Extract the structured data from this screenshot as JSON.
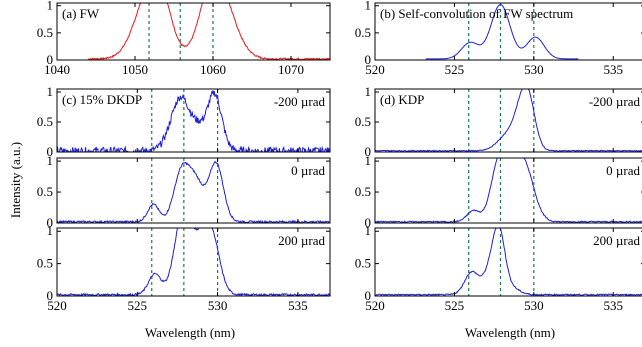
{
  "figure": {
    "ylabel_shared": "Intensity (a.u.)",
    "xlabel": "Wavelength (nm)"
  },
  "chart_data": [
    {
      "id": "a",
      "type": "line",
      "label": "(a) FW",
      "xlim": [
        1040,
        1075
      ],
      "ylim": [
        0,
        1.05
      ],
      "xticks": [
        1040,
        1050,
        1060,
        1070
      ],
      "yticks": [
        0,
        0.5,
        1
      ],
      "ytick_labels": [
        "0",
        "0.5",
        "1"
      ],
      "color": "#e8191c",
      "peaks": [
        [
          1051.5,
          0.9,
          1.8
        ],
        [
          1053.2,
          0.9,
          1.5
        ],
        [
          1059.6,
          0.9,
          1.5
        ],
        [
          1061.3,
          0.88,
          1.8
        ]
      ],
      "noise": 0.015,
      "x_range": [
        1044,
        1075
      ]
    },
    {
      "id": "b",
      "type": "line",
      "label": "(b) Self-convolution of FW spectrum",
      "xlim": [
        520,
        537
      ],
      "ylim": [
        0,
        1.05
      ],
      "xticks": [
        520,
        525,
        530,
        535
      ],
      "yticks": [
        0,
        0.5,
        1
      ],
      "ytick_labels": [
        "0",
        "0.5",
        "1"
      ],
      "color": "#1f1fd6",
      "peaks": [
        [
          526.0,
          0.3,
          0.55
        ],
        [
          527.9,
          1.0,
          0.6
        ],
        [
          530.1,
          0.4,
          0.55
        ]
      ],
      "noise": 0.0,
      "x_range": [
        523.2,
        532.8
      ]
    },
    {
      "id": "c1",
      "type": "line",
      "label": "(c) 15% DKDP",
      "annotation": "-200 µrad",
      "xlim": [
        520,
        537
      ],
      "ylim": [
        0,
        1.05
      ],
      "yticks": [
        0,
        0.5,
        1
      ],
      "ytick_labels": [
        "0",
        "0.5",
        "1"
      ],
      "color": "#1f1fd6",
      "peaks": [
        [
          527.4,
          0.45,
          0.55
        ],
        [
          527.9,
          0.55,
          0.5
        ],
        [
          529.8,
          0.95,
          0.45
        ],
        [
          528.8,
          0.3,
          0.4
        ]
      ],
      "noise": 0.06,
      "x_range": [
        520,
        537
      ]
    },
    {
      "id": "c2",
      "type": "line",
      "annotation": "0 µrad",
      "xlim": [
        520,
        537
      ],
      "ylim": [
        0,
        1.05
      ],
      "yticks": [
        0,
        0.5,
        1
      ],
      "ytick_labels": [
        "0",
        "0.5",
        "1"
      ],
      "color": "#1f1fd6",
      "peaks": [
        [
          526.0,
          0.28,
          0.35
        ],
        [
          527.8,
          0.85,
          0.5
        ],
        [
          529.9,
          0.95,
          0.45
        ],
        [
          528.7,
          0.55,
          0.45
        ]
      ],
      "noise": 0.015,
      "x_range": [
        520,
        537
      ]
    },
    {
      "id": "c3",
      "type": "line",
      "annotation": "200 µrad",
      "xlim": [
        520,
        537
      ],
      "ylim": [
        0,
        1.05
      ],
      "xticks": [
        520,
        525,
        530,
        535
      ],
      "yticks": [
        0,
        0.5,
        1
      ],
      "ytick_labels": [
        "0",
        "0.5",
        "1"
      ],
      "color": "#1f1fd6",
      "peaks": [
        [
          526.1,
          0.32,
          0.4
        ],
        [
          527.6,
          0.75,
          0.45
        ],
        [
          528.1,
          0.9,
          0.4
        ],
        [
          529.6,
          0.95,
          0.5
        ],
        [
          528.9,
          0.55,
          0.4
        ]
      ],
      "noise": 0.015,
      "x_range": [
        520,
        537
      ]
    },
    {
      "id": "d1",
      "type": "line",
      "label": "(d) KDP",
      "annotation": "-200 µrad",
      "xlim": [
        520,
        537
      ],
      "ylim": [
        0,
        1.05
      ],
      "yticks": [
        0,
        0.5,
        1
      ],
      "ytick_labels": [
        "0",
        "0.5",
        "1"
      ],
      "color": "#1f1fd6",
      "peaks": [
        [
          528.3,
          0.25,
          0.6
        ],
        [
          529.6,
          0.95,
          0.45
        ],
        [
          529.0,
          0.3,
          0.4
        ]
      ],
      "noise": 0.008,
      "x_range": [
        520,
        537
      ]
    },
    {
      "id": "d2",
      "type": "line",
      "annotation": "0 µrad",
      "xlim": [
        520,
        537
      ],
      "ylim": [
        0,
        1.05
      ],
      "yticks": [
        0,
        0.5,
        1
      ],
      "ytick_labels": [
        "0",
        "0.5",
        "1"
      ],
      "color": "#1f1fd6",
      "peaks": [
        [
          526.2,
          0.18,
          0.4
        ],
        [
          527.8,
          0.95,
          0.5
        ],
        [
          529.4,
          0.9,
          0.6
        ],
        [
          528.6,
          0.6,
          0.45
        ]
      ],
      "noise": 0.01,
      "x_range": [
        520,
        537
      ]
    },
    {
      "id": "d3",
      "type": "line",
      "annotation": "200 µrad",
      "xlim": [
        520,
        537
      ],
      "ylim": [
        0,
        1.05
      ],
      "xticks": [
        520,
        525,
        530,
        535
      ],
      "yticks": [
        0,
        0.5,
        1
      ],
      "ytick_labels": [
        "0",
        "0.5",
        "1"
      ],
      "color": "#1f1fd6",
      "peaks": [
        [
          526.1,
          0.35,
          0.45
        ],
        [
          527.2,
          0.3,
          0.4
        ],
        [
          527.8,
          0.95,
          0.38
        ],
        [
          528.6,
          0.1,
          0.5
        ]
      ],
      "noise": 0.01,
      "x_range": [
        520,
        537
      ]
    }
  ],
  "guide_lines": {
    "color": "#1a7a5a",
    "top_left_x": [
      1051.8,
      1055.8,
      1060.0
    ],
    "wavelength_x": [
      525.9,
      527.9,
      530.0
    ]
  }
}
